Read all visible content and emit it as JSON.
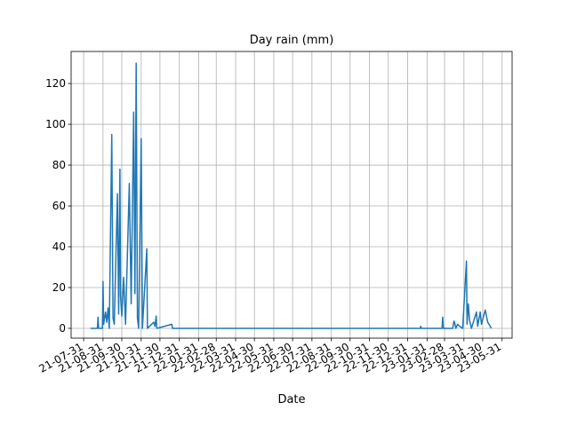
{
  "chart_data": {
    "type": "line",
    "title": "Day rain (mm)",
    "x_label": "Date",
    "x": [
      "21-08-11",
      "21-08-22",
      "21-08-23",
      "21-08-24",
      "21-08-30",
      "21-08-31",
      "21-09-01",
      "21-09-04",
      "21-09-06",
      "21-09-08",
      "21-09-10",
      "21-09-14",
      "21-09-16",
      "21-09-18",
      "21-09-23",
      "21-09-25",
      "21-09-27",
      "21-09-28",
      "21-09-30",
      "21-10-03",
      "21-10-06",
      "21-10-12",
      "21-10-15",
      "21-10-19",
      "21-10-21",
      "21-10-23",
      "21-10-25",
      "21-10-27",
      "21-10-31",
      "21-11-02",
      "21-11-09",
      "21-11-10",
      "21-11-20",
      "21-11-22",
      "21-11-24",
      "21-11-25",
      "21-12-19",
      "21-12-20",
      "23-01-20",
      "23-01-21",
      "23-01-22",
      "23-02-24",
      "23-02-25",
      "23-02-26",
      "23-03-13",
      "23-03-15",
      "23-03-16",
      "23-03-18",
      "23-03-21",
      "23-03-24",
      "23-03-29",
      "23-04-04",
      "23-04-05",
      "23-04-07",
      "23-04-09",
      "23-04-12",
      "23-04-20",
      "23-04-22",
      "23-04-26",
      "23-04-28",
      "23-05-04",
      "23-05-08",
      "23-05-14"
    ],
    "series": [
      {
        "color": "#1f77b4",
        "values": [
          0,
          0,
          5.5,
          0,
          0,
          23,
          2,
          8,
          3,
          10,
          0,
          95,
          5,
          2,
          66,
          7,
          78,
          16,
          6,
          25,
          2,
          71,
          12,
          106,
          17,
          130,
          5,
          0,
          93,
          0,
          39,
          0,
          3,
          1,
          6,
          0,
          2,
          0,
          0,
          1,
          0,
          0,
          5.5,
          0,
          0,
          3.5,
          3,
          0,
          2,
          1,
          0,
          33,
          2,
          12,
          4,
          0,
          8,
          1,
          8,
          2,
          9,
          3,
          0
        ]
      }
    ],
    "xlim": [
      "21-07-11",
      "23-06-16"
    ],
    "xticks": [
      "21-07-31",
      "21-08-31",
      "21-09-30",
      "21-10-31",
      "21-11-30",
      "21-12-31",
      "22-01-31",
      "22-02-28",
      "22-03-31",
      "22-04-30",
      "22-05-31",
      "22-06-30",
      "22-07-31",
      "22-08-31",
      "22-09-30",
      "22-10-31",
      "22-11-30",
      "22-12-31",
      "23-01-31",
      "23-02-28",
      "23-03-31",
      "23-04-30",
      "23-05-31"
    ],
    "ylim": [
      -4.8,
      135.7
    ],
    "yticks": [
      0,
      20,
      40,
      60,
      80,
      100,
      120
    ],
    "grid": true
  }
}
